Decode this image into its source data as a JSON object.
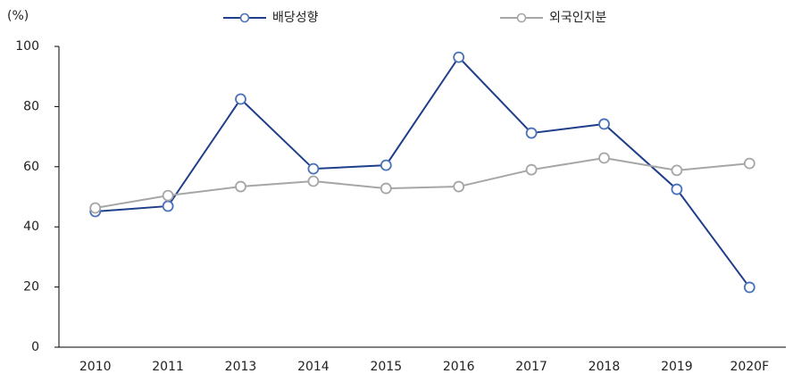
{
  "chart_data": {
    "type": "line",
    "y_label": "(%)",
    "categories": [
      "2010",
      "2011",
      "2013",
      "2014",
      "2015",
      "2016",
      "2017",
      "2018",
      "2019",
      "2020F"
    ],
    "series": [
      {
        "name": "배당성향",
        "color": "#1f3f8a",
        "values": [
          45.1,
          46.9,
          82.5,
          59.3,
          60.5,
          96.4,
          71.2,
          74.2,
          52.5,
          19.9
        ]
      },
      {
        "name": "외국인지분",
        "color": "#a6a6a6",
        "values": [
          46.3,
          50.4,
          53.4,
          55.2,
          52.8,
          53.4,
          59.0,
          62.9,
          58.8,
          61.1
        ]
      }
    ],
    "ylim": [
      0,
      100
    ],
    "yticks": [
      0,
      20,
      40,
      60,
      80,
      100
    ],
    "grid": false,
    "legend": "top"
  }
}
